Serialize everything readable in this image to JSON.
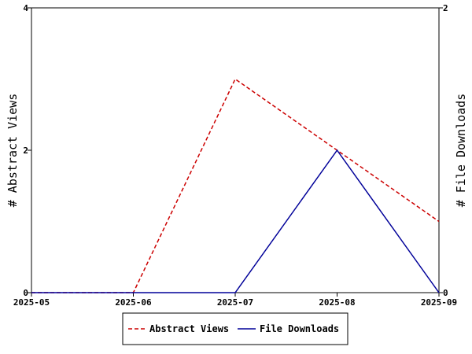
{
  "chart_data": {
    "type": "line",
    "x": [
      "2025-05",
      "2025-06",
      "2025-07",
      "2025-08",
      "2025-09"
    ],
    "series": [
      {
        "name": "Abstract Views",
        "values": [
          0,
          0,
          3,
          2,
          1
        ],
        "axis": "left",
        "color": "#cc0000",
        "style": "dashed"
      },
      {
        "name": "File Downloads",
        "values": [
          0,
          0,
          0,
          1,
          0
        ],
        "axis": "right",
        "color": "#000099",
        "style": "solid"
      }
    ],
    "ylabel": "# Abstract Views",
    "y2label": "# File Downloads",
    "ylim": [
      0,
      4
    ],
    "y2lim": [
      0,
      2
    ],
    "yticks": [
      0,
      2,
      4
    ],
    "y2ticks": [
      0,
      2
    ],
    "grid": false,
    "legend": "bottom"
  }
}
